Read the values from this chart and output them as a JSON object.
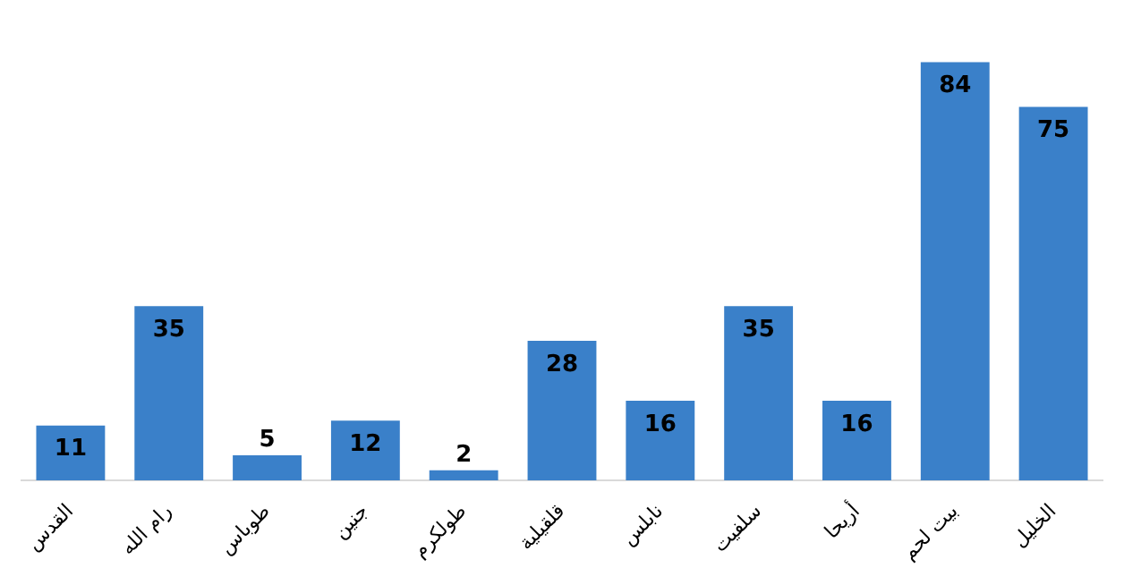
{
  "chart_data": {
    "type": "bar",
    "categories": [
      "القدس",
      "رام الله",
      "طوباس",
      "جنين",
      "طولكرم",
      "قلقيلية",
      "نابلس",
      "سلفيت",
      "أريحا",
      "بيت لحم",
      "الخليل"
    ],
    "values": [
      11,
      35,
      5,
      12,
      2,
      28,
      16,
      35,
      16,
      84,
      75
    ],
    "color": "#3a80c9",
    "data_labels": true,
    "grid": false,
    "legend": false
  }
}
